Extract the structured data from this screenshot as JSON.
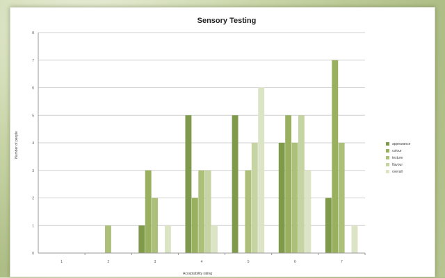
{
  "chart_data": {
    "type": "bar",
    "title": "Sensory Testing",
    "xlabel": "Acceptability rating",
    "ylabel": "Number of people",
    "categories": [
      "1",
      "2",
      "3",
      "4",
      "5",
      "6",
      "7"
    ],
    "ylim": [
      0,
      8
    ],
    "yticks": [
      0,
      1,
      2,
      3,
      4,
      5,
      6,
      7,
      8
    ],
    "grid": true,
    "legend_position": "right",
    "series": [
      {
        "name": "appearance",
        "color": "#7f9a4b",
        "values": [
          0,
          0,
          1,
          5,
          5,
          4,
          2
        ]
      },
      {
        "name": "colour",
        "color": "#99b05f",
        "values": [
          0,
          0,
          3,
          2,
          0,
          5,
          7
        ]
      },
      {
        "name": "texture",
        "color": "#adc07a",
        "values": [
          0,
          1,
          2,
          3,
          3,
          4,
          4
        ]
      },
      {
        "name": "flavour",
        "color": "#c6d3a2",
        "values": [
          0,
          0,
          0,
          3,
          4,
          5,
          0
        ]
      },
      {
        "name": "overall",
        "color": "#dce4c6",
        "values": [
          0,
          0,
          1,
          1,
          6,
          3,
          1
        ]
      }
    ]
  }
}
